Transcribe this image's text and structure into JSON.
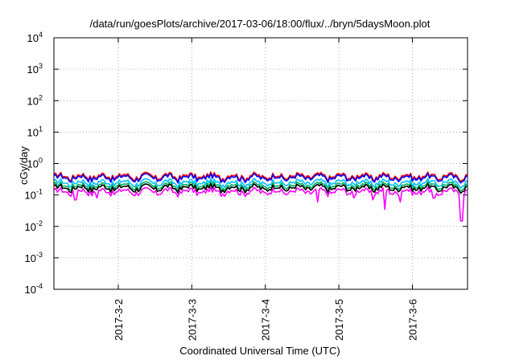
{
  "chart_data": {
    "type": "line",
    "title": "/data/run/goesPlots/archive/2017-03-06/18:00/flux/../bryn/5daysMoon.plot",
    "xlabel": "Coordinated Universal Time (UTC)",
    "ylabel": "cGy/day",
    "yscale": "log",
    "ylim": [
      0.0001,
      10000
    ],
    "y_ticks": [
      {
        "value": 0.0001,
        "base": "10",
        "exp": "-4"
      },
      {
        "value": 0.001,
        "base": "10",
        "exp": "-3"
      },
      {
        "value": 0.01,
        "base": "10",
        "exp": "-2"
      },
      {
        "value": 0.1,
        "base": "10",
        "exp": "-1"
      },
      {
        "value": 1,
        "base": "10",
        "exp": "0"
      },
      {
        "value": 10,
        "base": "10",
        "exp": "1"
      },
      {
        "value": 100,
        "base": "10",
        "exp": "2"
      },
      {
        "value": 1000,
        "base": "10",
        "exp": "3"
      },
      {
        "value": 10000,
        "base": "10",
        "exp": "4"
      }
    ],
    "xlim": [
      "2017-03-01T03:00",
      "2017-03-06T18:00"
    ],
    "x_ticks": [
      "2017-3-2",
      "2017-3-3",
      "2017-3-4",
      "2017-3-5",
      "2017-3-6"
    ],
    "grid": true,
    "legend": "none",
    "series_colors": [
      "#ff0000",
      "#0000ff",
      "#00c0ff",
      "#00b060",
      "#000000",
      "#ff00ff"
    ],
    "series": [
      {
        "color": "#ff0000",
        "level": 0.4
      },
      {
        "color": "#0000ff",
        "level": 0.36
      },
      {
        "color": "#00c0ff",
        "level": 0.25
      },
      {
        "color": "#00b060",
        "level": 0.2
      },
      {
        "color": "#000000",
        "level": 0.17
      },
      {
        "color": "#ff00ff",
        "level": 0.13,
        "dips": [
          {
            "x": "2017-03-01T10:00",
            "y": 0.07
          },
          {
            "x": "2017-03-01T17:00",
            "y": 0.08
          },
          {
            "x": "2017-03-04T17:00",
            "y": 0.06
          },
          {
            "x": "2017-03-05T05:00",
            "y": 0.08
          },
          {
            "x": "2017-03-05T11:00",
            "y": 0.07
          },
          {
            "x": "2017-03-05T15:00",
            "y": 0.035
          },
          {
            "x": "2017-03-05T20:00",
            "y": 0.06
          },
          {
            "x": "2017-03-06T07:00",
            "y": 0.08
          },
          {
            "x": "2017-03-06T16:00",
            "y": 0.015
          }
        ]
      }
    ]
  }
}
